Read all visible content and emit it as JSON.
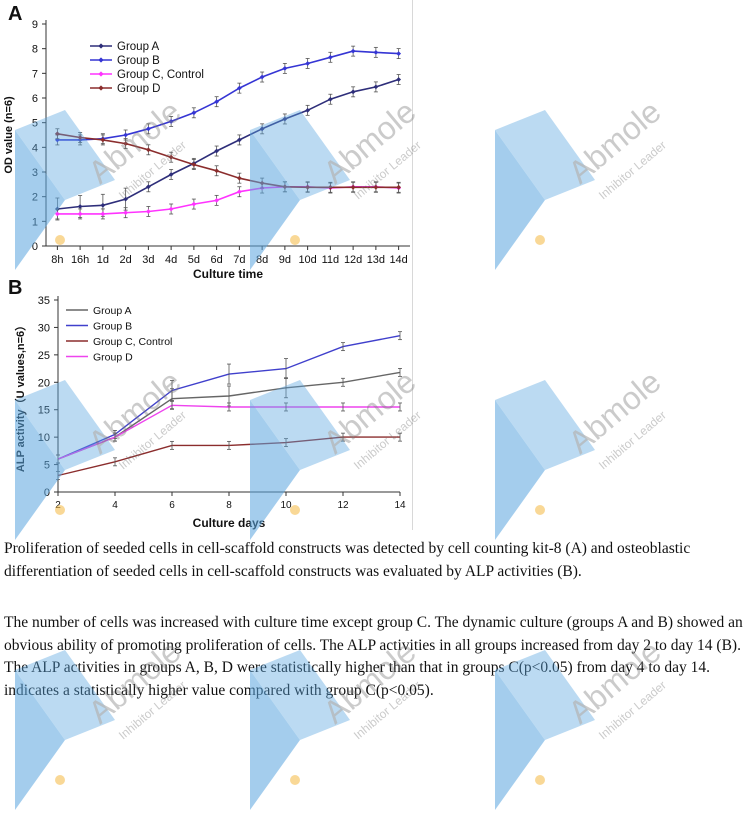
{
  "chart_data": [
    {
      "panel_label": "A",
      "type": "line",
      "xlabel": "Culture time",
      "ylabel": "OD value (n=6)",
      "ylim": [
        0,
        9
      ],
      "yticks": [
        0,
        1,
        2,
        3,
        4,
        5,
        6,
        7,
        8,
        9
      ],
      "categories": [
        "8h",
        "16h",
        "1d",
        "2d",
        "3d",
        "4d",
        "5d",
        "6d",
        "7d",
        "8d",
        "9d",
        "10d",
        "11d",
        "12d",
        "13d",
        "14d"
      ],
      "legend_position": "top-left",
      "grid": false,
      "series": [
        {
          "name": "Group A",
          "color": "#2e2e7a",
          "marker": "diamond",
          "values": [
            1.5,
            1.6,
            1.65,
            1.9,
            2.4,
            2.9,
            3.35,
            3.85,
            4.3,
            4.75,
            5.15,
            5.5,
            5.95,
            6.25,
            6.45,
            6.75
          ]
        },
        {
          "name": "Group B",
          "color": "#3535d4",
          "marker": "diamond",
          "values": [
            4.3,
            4.3,
            4.35,
            4.5,
            4.75,
            5.05,
            5.4,
            5.85,
            6.4,
            6.85,
            7.2,
            7.4,
            7.65,
            7.9,
            7.85,
            7.8
          ]
        },
        {
          "name": "Group C, Control",
          "color": "#ff33ff",
          "marker": "diamond",
          "values": [
            1.3,
            1.3,
            1.3,
            1.35,
            1.4,
            1.5,
            1.7,
            1.85,
            2.2,
            2.35,
            2.4,
            2.4,
            2.35,
            2.4,
            2.4,
            2.35
          ]
        },
        {
          "name": "Group D",
          "color": "#8b2d2d",
          "marker": "diamond",
          "values": [
            4.55,
            4.4,
            4.3,
            4.15,
            3.9,
            3.6,
            3.3,
            3.05,
            2.75,
            2.55,
            2.4,
            2.38,
            2.38,
            2.38,
            2.38,
            2.38
          ]
        }
      ]
    },
    {
      "panel_label": "B",
      "type": "line",
      "xlabel": "Culture days",
      "ylabel": "ALP activity（U values,n=6）",
      "ylim": [
        0,
        35
      ],
      "yticks": [
        0,
        5,
        10,
        15,
        20,
        25,
        30,
        35
      ],
      "xlim": [
        2,
        14
      ],
      "xticks": [
        2,
        4,
        6,
        8,
        10,
        12,
        14
      ],
      "x": [
        2,
        4,
        6,
        8,
        10,
        12,
        14
      ],
      "legend_position": "top-left",
      "grid": false,
      "series": [
        {
          "name": "Group A",
          "color": "#666666",
          "values": [
            6.0,
            10.0,
            17.0,
            17.5,
            19.0,
            20.0,
            21.8
          ]
        },
        {
          "name": "Group B",
          "color": "#4040cc",
          "values": [
            6.0,
            10.5,
            18.5,
            21.5,
            22.5,
            26.5,
            28.5
          ]
        },
        {
          "name": "Group C, Control",
          "color": "#8b2d2d",
          "values": [
            3.0,
            5.5,
            8.5,
            8.5,
            9.0,
            10.0,
            10.0
          ]
        },
        {
          "name": "Group D",
          "color": "#ee44ee",
          "values": [
            6.0,
            10.0,
            15.8,
            15.5,
            15.5,
            15.5,
            15.5
          ]
        }
      ]
    }
  ],
  "caption": {
    "p1": "Proliferation of seeded cells in cell-scaffold constructs was detected by cell counting kit-8 (A) and osteoblastic differentiation of seeded cells in cell-scaffold constructs was evaluated by ALP activities (B).",
    "p2": "The number of cells was increased with culture time except group C. The dynamic culture (groups A and B) showed an obvious ability of promoting proliferation of cells. The ALP activities in all groups increased from day 2 to day 14 (B). The ALP activities in groups A, B, D were statistically higher than that in groups C(p<0.05) from day 4 to day 14. indicates a statistically higher value compared with group C(p<0.05)."
  },
  "watermark": {
    "brand": "Abmole",
    "tagline": "Inhibitor Leader",
    "color": "#5aa6e0",
    "dot_color": "#f5b942"
  }
}
